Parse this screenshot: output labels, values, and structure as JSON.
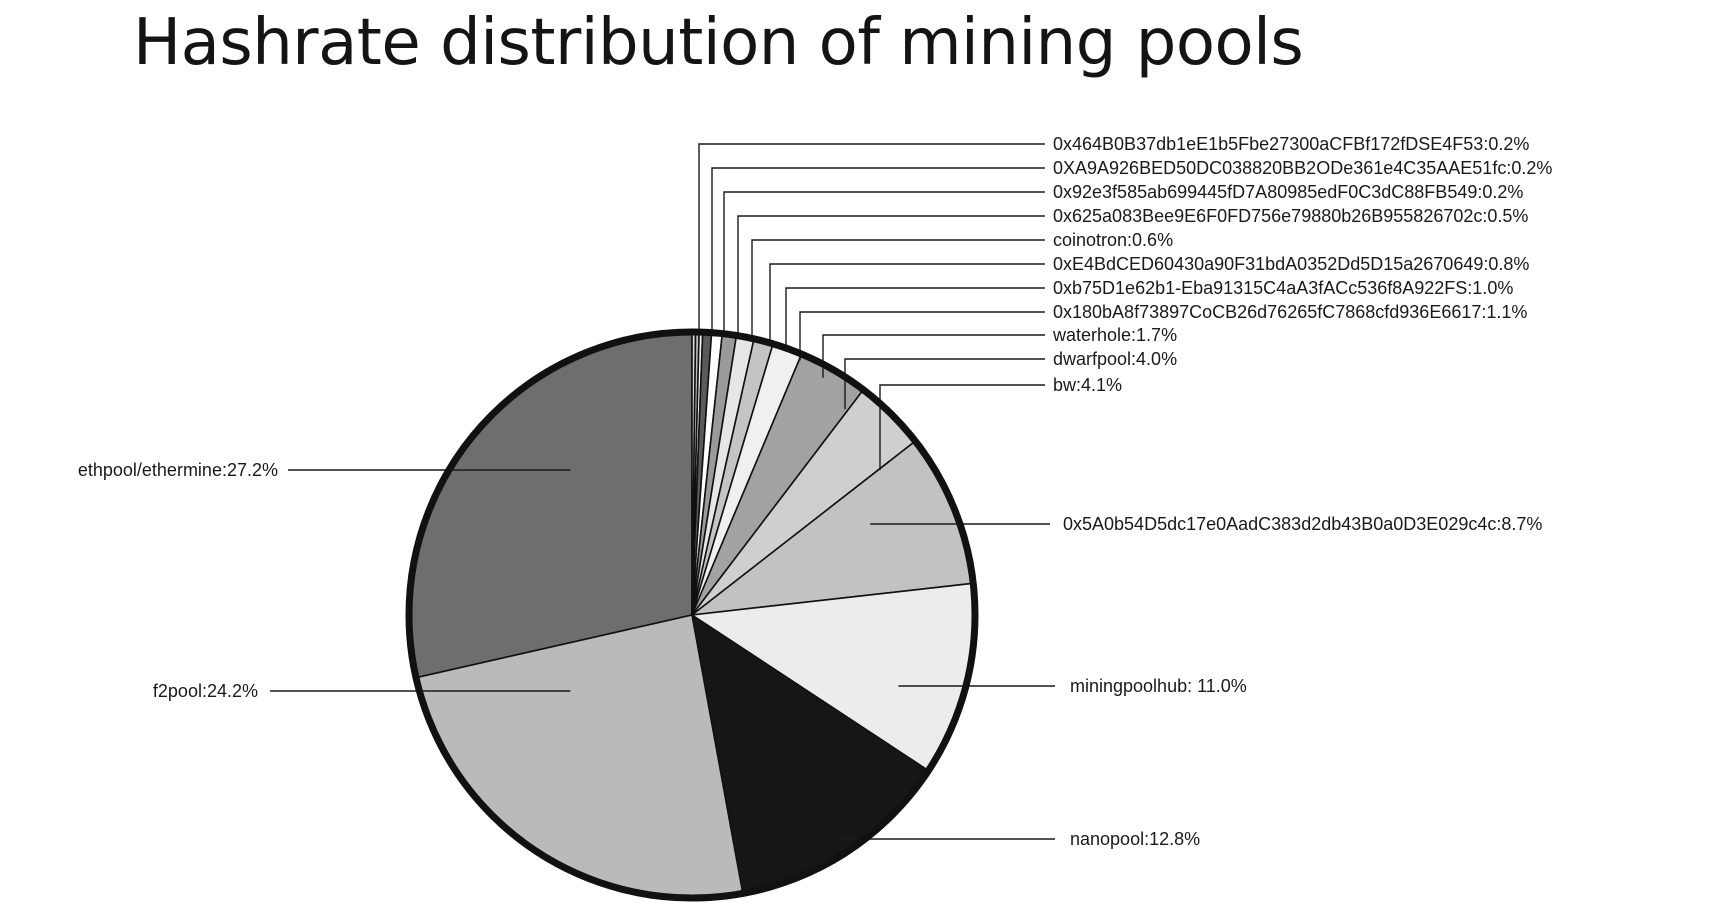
{
  "chart_data": {
    "type": "pie",
    "title": "Hashrate distribution of mining pools",
    "slices": [
      {
        "label": "ethpool/ethermine:27.2%",
        "name": "ethpool/ethermine",
        "value": 27.2,
        "color": "#6e6e6e"
      },
      {
        "label": "0x464B0B37db1eE1b5Fbe27300aCFBf172fDSE4F53:0.2%",
        "name": "0x464B0B37db1eE1b5Fbe27300aCFBf172fDSE4F53",
        "value": 0.2,
        "color": "#d8d8d8"
      },
      {
        "label": "0XA9A926BED50DC038820BB2ODe361e4C35AAE51fc:0.2%",
        "name": "0XA9A926BED50DC038820BB2ODe361e4C35AAE51fc",
        "value": 0.2,
        "color": "#bdbdbd"
      },
      {
        "label": "0x92e3f585ab699445fD7A80985edF0C3dC88FB549:0.2%",
        "name": "0x92e3f585ab699445fD7A80985edF0C3dC88FB549",
        "value": 0.2,
        "color": "#f2f2f2"
      },
      {
        "label": "0x625a083Bee9E6F0FD756e79880b26B955826702c:0.5%",
        "name": "0x625a083Bee9E6F0FD756e79880b26B955826702c",
        "value": 0.5,
        "color": "#5a5a5a"
      },
      {
        "label": "coinotron:0.6%",
        "name": "coinotron",
        "value": 0.6,
        "color": "#ffffff"
      },
      {
        "label": "0xE4BdCED60430a90F31bdA0352Dd5D15a2670649:0.8%",
        "name": "0xE4BdCED60430a90F31bdA0352Dd5D15a2670649",
        "value": 0.8,
        "color": "#9a9a9a"
      },
      {
        "label": "0xb75D1e62b1-Eba91315C4aA3fACc536f8A922FS:1.0%",
        "name": "0xb75D1e62b1-Eba91315C4aA3fACc536f8A922FS",
        "value": 1.0,
        "color": "#e6e6e6"
      },
      {
        "label": "0x180bA8f73897CoCB26d76265fC7868cfd936E6617:1.1%",
        "name": "0x180bA8f73897CoCB26d76265fC7868cfd936E6617",
        "value": 1.1,
        "color": "#c4c4c4"
      },
      {
        "label": "waterhole:1.7%",
        "name": "waterhole",
        "value": 1.7,
        "color": "#f0f0f0"
      },
      {
        "label": "dwarfpool:4.0%",
        "name": "dwarfpool",
        "value": 4.0,
        "color": "#a2a2a2"
      },
      {
        "label": "bw:4.1%",
        "name": "bw",
        "value": 4.1,
        "color": "#cfcfcf"
      },
      {
        "label": "0x5A0b54D5dc17e0AadC383d2db43B0a0D3E029c4c:8.7%",
        "name": "0x5A0b54D5dc17e0AadC383d2db43B0a0D3E029c4c",
        "value": 8.7,
        "color": "#c2c2c2"
      },
      {
        "label": "miningpoolhub: 11.0%",
        "name": "miningpoolhub",
        "value": 11.0,
        "color": "#ececec"
      },
      {
        "label": "nanopool:12.8%",
        "name": "nanopool",
        "value": 12.8,
        "color": "#161616"
      },
      {
        "label": "f2pool:24.2%",
        "name": "f2pool",
        "value": 24.2,
        "color": "#bababa"
      }
    ],
    "legend": "none",
    "border_color": "#111111"
  }
}
